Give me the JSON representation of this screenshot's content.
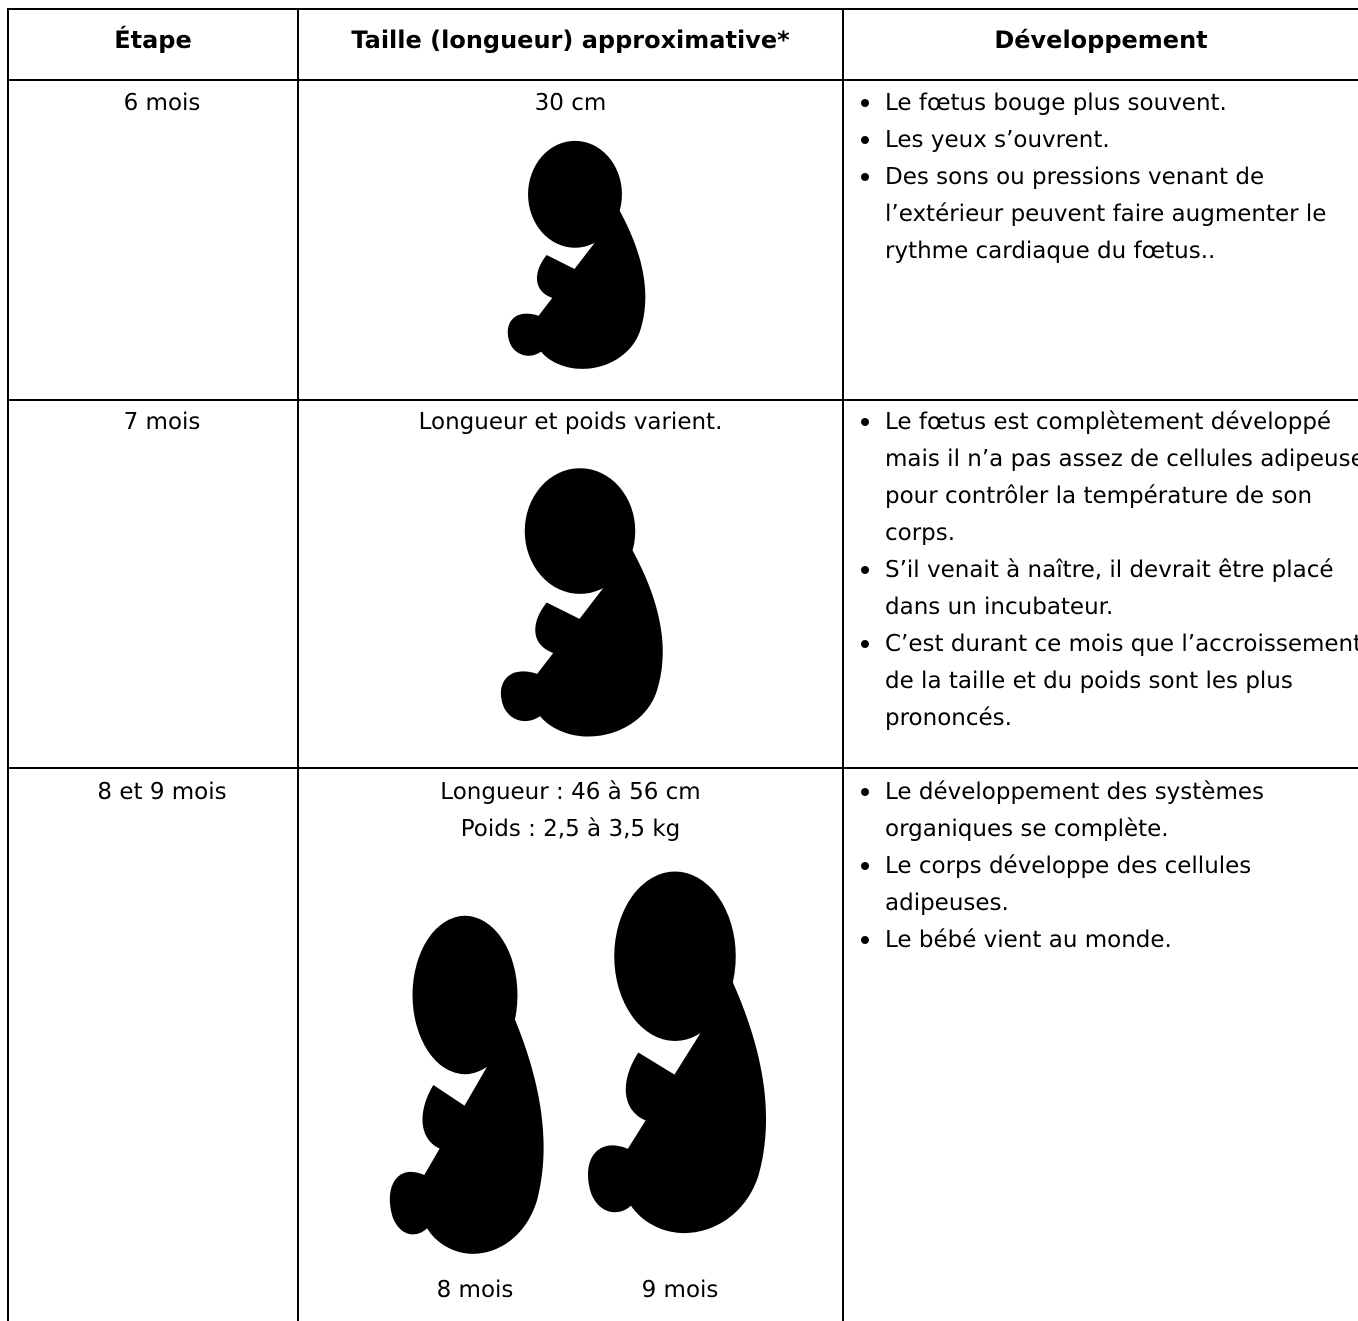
{
  "table": {
    "header": [
      "Étape",
      "Taille (longueur) approximative*",
      "Développement"
    ],
    "rows": [
      {
        "stage": "6 mois",
        "size": [
          "30 cm"
        ],
        "development": [
          "Le fœtus bouge plus souvent.",
          "Les yeux s’ouvrent.",
          "Des sons ou pressions venant de l’extérieur peuvent faire augmenter le rythme cardiaque du fœtus.."
        ]
      },
      {
        "stage": "7 mois",
        "size": [
          "Longueur et poids varient."
        ],
        "development": [
          "Le fœtus est complètement développé mais il n’a pas assez de cellules adipeuses pour contrôler la température de son corps.",
          "S’il venait à naître, il devrait être placé dans un incubateur.",
          "C’est durant ce mois que l’accroissement de la taille et du poids sont les plus prononcés."
        ]
      },
      {
        "stage": "8 et 9 mois",
        "size": [
          "Longueur : 46 à 56 cm",
          "Poids : 2,5 à 3,5 kg"
        ],
        "image_labels": [
          "8 mois",
          "9 mois"
        ],
        "development": [
          "Le développement des systèmes organiques se complète.",
          "Le corps développe des cellules adipeuses.",
          "Le bébé vient au monde."
        ]
      }
    ]
  }
}
